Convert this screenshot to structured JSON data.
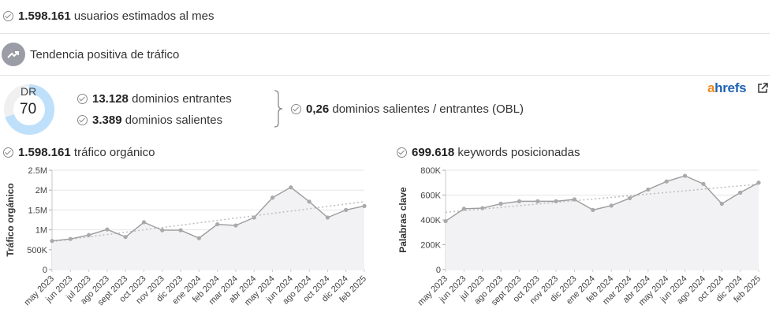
{
  "stats": {
    "users_value": "1.598.161",
    "users_label": "usuarios estimados al mes",
    "trend_label": "Tendencia positiva de tráfico",
    "dr_label": "DR",
    "dr_value": "70",
    "dr_percent": 70,
    "backlinks_value": "13.128",
    "backlinks_label": "dominios entrantes",
    "outlinks_value": "3.389",
    "outlinks_label": "dominios salientes",
    "obl_value": "0,26",
    "obl_label": "dominios salientes / entrantes (OBL)"
  },
  "brand": {
    "a": "a",
    "rest": "hrefs",
    "icon": "external-link-icon"
  },
  "colors": {
    "accent_blue": "#bfe0fb",
    "brand_orange": "#f08a1c",
    "brand_blue": "#1f63b6",
    "line": "#9c9c9c"
  },
  "chart_data": [
    {
      "type": "line",
      "heading_value": "1.598.161",
      "heading_label": "tráfico orgánico",
      "ylabel": "Tráfico orgánico",
      "xlabel": "",
      "ylim": [
        0,
        2500000
      ],
      "y_ticks": [
        0,
        500000,
        1000000,
        1500000,
        2000000,
        2500000
      ],
      "y_tick_labels": [
        "0",
        "500K",
        "1M",
        "1.5M",
        "2M",
        "2.5M"
      ],
      "grid": true,
      "trendline": true,
      "categories": [
        "may 2023",
        "jun 2023",
        "jul 2023",
        "ago 2023",
        "sept 2023",
        "oct 2023",
        "nov 2023",
        "dic 2023",
        "ene 2024",
        "feb 2024",
        "mar 2024",
        "abr 2024",
        "may 2024",
        "jun 2024",
        "ago 2024",
        "oct 2024",
        "dic 2024",
        "feb 2025"
      ],
      "values": [
        720000,
        770000,
        870000,
        1010000,
        820000,
        1190000,
        990000,
        990000,
        790000,
        1140000,
        1110000,
        1310000,
        1810000,
        2070000,
        1710000,
        1310000,
        1500000,
        1600000
      ]
    },
    {
      "type": "line",
      "heading_value": "699.618",
      "heading_label": "keywords posicionadas",
      "ylabel": "Palabras clave",
      "xlabel": "",
      "ylim": [
        0,
        800000
      ],
      "y_ticks": [
        0,
        200000,
        400000,
        600000,
        800000
      ],
      "y_tick_labels": [
        "0",
        "200K",
        "400K",
        "600K",
        "800K"
      ],
      "grid": true,
      "trendline": true,
      "categories": [
        "may 2023",
        "jun 2023",
        "jul 2023",
        "ago 2023",
        "sept 2023",
        "oct 2023",
        "nov 2023",
        "dic 2023",
        "ene 2024",
        "feb 2024",
        "mar 2024",
        "abr 2024",
        "may 2024",
        "jun 2024",
        "ago 2024",
        "oct 2024",
        "dic 2024",
        "feb 2025"
      ],
      "values": [
        390000,
        490000,
        495000,
        530000,
        550000,
        550000,
        550000,
        565000,
        480000,
        515000,
        575000,
        645000,
        710000,
        755000,
        690000,
        530000,
        620000,
        700000
      ]
    }
  ]
}
